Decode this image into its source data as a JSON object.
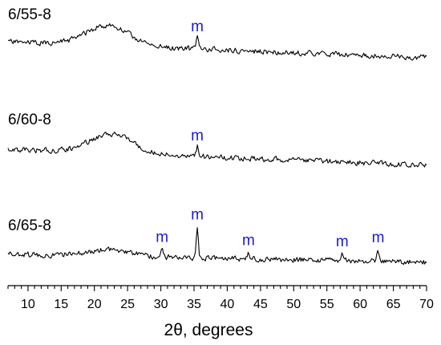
{
  "colors": {
    "trace": "#000000",
    "peak_marker": "#1a1adb",
    "axis": "#000000"
  },
  "chart_data": {
    "type": "line",
    "title": "",
    "xlabel": "2θ, degrees",
    "ylabel": "",
    "xlim": [
      7,
      70
    ],
    "x_ticks": [
      10,
      15,
      20,
      25,
      30,
      35,
      40,
      45,
      50,
      55,
      60,
      65,
      70
    ],
    "grid": false,
    "legend": "none",
    "series": [
      {
        "name": "6/55-8",
        "amorphous_hump_center": 22,
        "peaks": [
          {
            "x": 35.5,
            "label": "m"
          }
        ]
      },
      {
        "name": "6/60-8",
        "amorphous_hump_center": 22.5,
        "peaks": [
          {
            "x": 35.5,
            "label": "m"
          }
        ]
      },
      {
        "name": "6/65-8",
        "amorphous_hump_center": 22,
        "peaks": [
          {
            "x": 30.2,
            "label": "m"
          },
          {
            "x": 35.5,
            "label": "m"
          },
          {
            "x": 43.2,
            "label": "m"
          },
          {
            "x": 57.3,
            "label": "m"
          },
          {
            "x": 62.7,
            "label": "m"
          }
        ]
      }
    ]
  }
}
